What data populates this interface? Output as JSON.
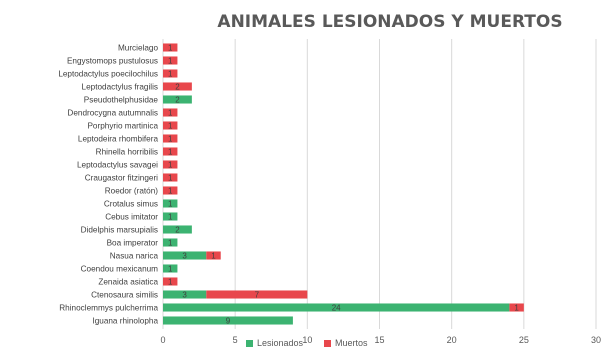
{
  "chart_data": {
    "type": "bar",
    "orientation": "horizontal",
    "stacked": true,
    "title": "ANIMALES LESIONADOS Y MUERTOS",
    "categories": [
      "Murcielago",
      "Engystomops pustulosus",
      "Leptodactylus poecilochilus",
      "Leptodactylus fragilis",
      "Pseudothelphusidae",
      "Dendrocygna autumnalis",
      "Porphyrio martinica",
      "Leptodeira rhombifera",
      "Rhinella horribilis",
      "Leptodactylus savagei",
      "Craugastor fitzingeri",
      "Roedor (ratón)",
      "Crotalus simus",
      "Cebus imitator",
      "Didelphis marsupialis",
      "Boa imperator",
      "Nasua narica",
      "Coendou mexicanum",
      "Zenaida asiatica",
      "Ctenosaura similis",
      "Rhinoclemmys pulcherrima",
      "Iguana rhinolopha"
    ],
    "series": [
      {
        "name": "Lesionados",
        "color": "#3cb371",
        "values": [
          null,
          null,
          null,
          null,
          2,
          null,
          null,
          null,
          null,
          null,
          null,
          null,
          1,
          1,
          2,
          1,
          3,
          1,
          null,
          3,
          24,
          9
        ]
      },
      {
        "name": "Muertos",
        "color": "#e8474c",
        "values": [
          1,
          1,
          1,
          2,
          null,
          1,
          1,
          1,
          1,
          1,
          1,
          1,
          null,
          null,
          null,
          null,
          1,
          null,
          1,
          7,
          1,
          null
        ]
      }
    ],
    "xlim": [
      0,
      30
    ],
    "xticks": [
      "0",
      "5",
      "10",
      "15",
      "20",
      "25",
      "30"
    ],
    "grid": "vertical",
    "legend_position": "bottom"
  }
}
